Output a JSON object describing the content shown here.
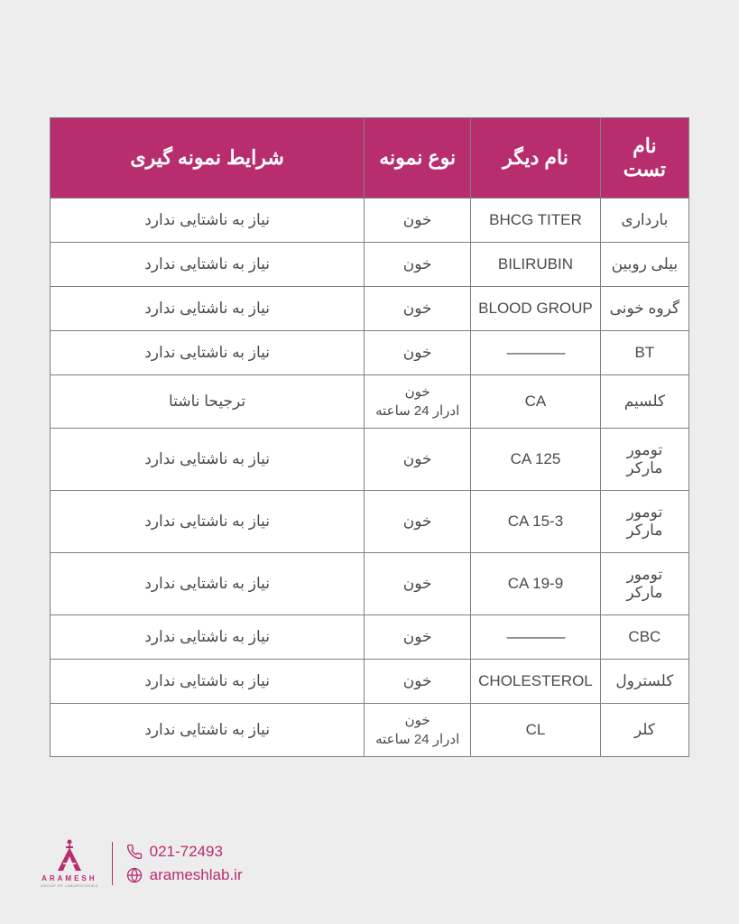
{
  "colors": {
    "header_bg": "#b82d6e",
    "header_text": "#ffffff",
    "cell_text": "#4a4a4a",
    "border": "#808080",
    "page_bg": "#ededed",
    "table_bg": "#ffffff",
    "brand": "#b82d6e"
  },
  "table": {
    "columns": [
      {
        "key": "test_name",
        "label": "نام تست",
        "width": "14%"
      },
      {
        "key": "other_name",
        "label": "نام دیگر",
        "width": "18%"
      },
      {
        "key": "sample_type",
        "label": "نوع نمونه",
        "width": "17%"
      },
      {
        "key": "conditions",
        "label": "شرایط نمونه گیری",
        "width": "51%"
      }
    ],
    "rows": [
      {
        "test_name": "بارداری",
        "other_name": "BHCG TITER",
        "sample_type": "خون",
        "conditions": "نیاز به ناشتایی ندارد"
      },
      {
        "test_name": "بیلی روبین",
        "other_name": "BILIRUBIN",
        "sample_type": "خون",
        "conditions": "نیاز به ناشتایی ندارد"
      },
      {
        "test_name": "گروه خونی",
        "other_name": "BLOOD GROUP",
        "sample_type": "خون",
        "conditions": "نیاز به ناشتایی ندارد"
      },
      {
        "test_name": "BT",
        "other_name": "————",
        "sample_type": "خون",
        "conditions": "نیاز به ناشتایی ندارد"
      },
      {
        "test_name": "کلسیم",
        "other_name": "CA",
        "sample_type": "خون\nادرار 24 ساعته",
        "conditions": "ترجیحا ناشتا"
      },
      {
        "test_name": "تومور مارکر",
        "other_name": "CA 125",
        "sample_type": "خون",
        "conditions": "نیاز به ناشتایی ندارد"
      },
      {
        "test_name": "تومور مارکر",
        "other_name": "CA 15-3",
        "sample_type": "خون",
        "conditions": "نیاز به ناشتایی ندارد"
      },
      {
        "test_name": "تومور مارکر",
        "other_name": "CA 19-9",
        "sample_type": "خون",
        "conditions": "نیاز به ناشتایی ندارد"
      },
      {
        "test_name": "CBC",
        "other_name": "————",
        "sample_type": "خون",
        "conditions": "نیاز به ناشتایی ندارد"
      },
      {
        "test_name": "کلسترول",
        "other_name": "CHOLESTEROL",
        "sample_type": "خون",
        "conditions": "نیاز به ناشتایی ندارد"
      },
      {
        "test_name": "کلر",
        "other_name": "CL",
        "sample_type": "خون\nادرار 24 ساعته",
        "conditions": "نیاز به ناشتایی ندارد"
      }
    ]
  },
  "footer": {
    "logo_name": "ARAMESH",
    "logo_subtitle": "GROUP OF LABORATORIES",
    "phone": "021-72493",
    "website": "arameshlab.ir"
  }
}
